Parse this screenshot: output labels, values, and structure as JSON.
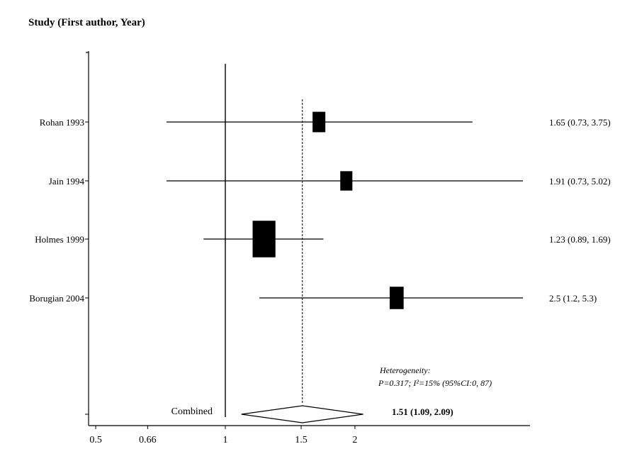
{
  "chart_data": {
    "type": "forest",
    "title": "Study (First author, Year)",
    "xscale": "log",
    "xlim": [
      0.45,
      3.0
    ],
    "xticks": [
      "0.5",
      "0.66",
      "1",
      "1.5",
      "2"
    ],
    "reference_line": 1,
    "pooled_line": 1.51,
    "studies": [
      {
        "name": "Rohan 1993",
        "or": 1.65,
        "lo": 0.73,
        "hi": 3.75,
        "weight": 1.0,
        "label": "1.65 (0.73, 3.75)"
      },
      {
        "name": "Jain 1994",
        "or": 1.91,
        "lo": 0.73,
        "hi": 5.02,
        "weight": 0.9,
        "label": "1.91 (0.73, 5.02)"
      },
      {
        "name": "Holmes 1999",
        "or": 1.23,
        "lo": 0.89,
        "hi": 1.69,
        "weight": 3.2,
        "label": "1.23 (0.89, 1.69)"
      },
      {
        "name": "Borugian 2004",
        "or": 2.5,
        "lo": 1.2,
        "hi": 5.3,
        "weight": 1.2,
        "label": "2.5  (1.2, 5.3)"
      }
    ],
    "combined": {
      "name": "Combined",
      "or": 1.51,
      "lo": 1.09,
      "hi": 2.09,
      "label": "1.51 (1.09, 2.09)"
    },
    "heterogeneity": {
      "line1": "Heterogeneity:",
      "line2": "P=0.317; I²=15% (95%CI:0, 87)"
    }
  }
}
